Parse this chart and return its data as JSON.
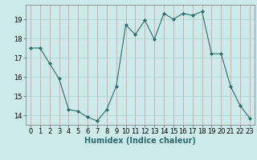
{
  "x": [
    0,
    1,
    2,
    3,
    4,
    5,
    6,
    7,
    8,
    9,
    10,
    11,
    12,
    13,
    14,
    15,
    16,
    17,
    18,
    19,
    20,
    21,
    22,
    23
  ],
  "y": [
    17.5,
    17.5,
    16.7,
    15.9,
    14.3,
    14.2,
    13.9,
    13.7,
    14.3,
    15.5,
    18.7,
    18.2,
    18.95,
    17.95,
    19.3,
    19.0,
    19.3,
    19.2,
    19.4,
    17.2,
    17.2,
    15.5,
    14.5,
    13.85
  ],
  "line_color": "#2e6b6b",
  "marker": "D",
  "marker_size": 2.0,
  "bg_color": "#cdeaea",
  "grid_color_h": "#b0d8d8",
  "grid_color_v": "#e0a0a0",
  "xlabel": "Humidex (Indice chaleur)",
  "xlabel_fontsize": 7,
  "tick_fontsize": 6,
  "ylim": [
    13.5,
    19.75
  ],
  "xlim": [
    -0.5,
    23.5
  ],
  "yticks": [
    14,
    15,
    16,
    17,
    18,
    19
  ],
  "xticks": [
    0,
    1,
    2,
    3,
    4,
    5,
    6,
    7,
    8,
    9,
    10,
    11,
    12,
    13,
    14,
    15,
    16,
    17,
    18,
    19,
    20,
    21,
    22,
    23
  ]
}
